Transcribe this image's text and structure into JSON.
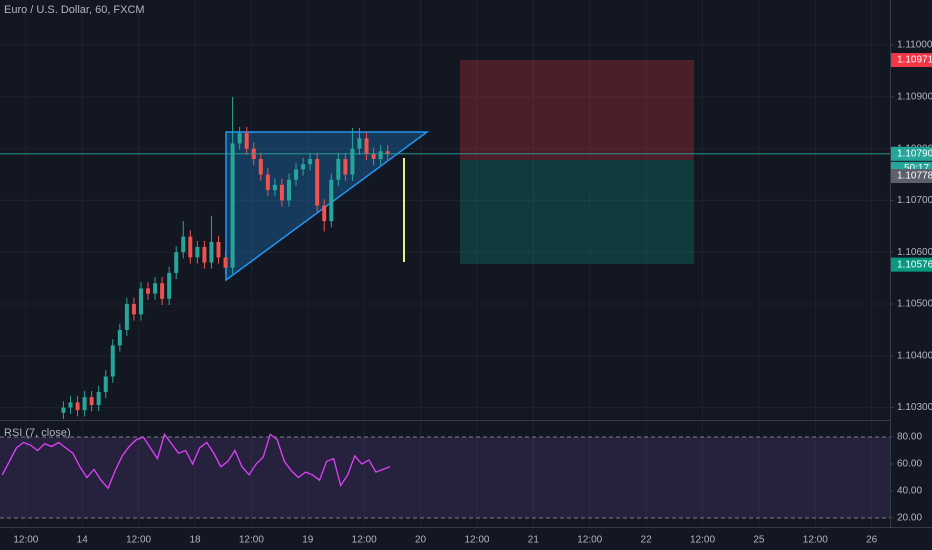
{
  "chart_data": {
    "type": "candlestick",
    "title": "Euro / U.S. Dollar, 60, FXCM",
    "x": [
      -28,
      -26.5,
      -25,
      -23.5,
      -22,
      -20.5,
      -19,
      -17.5,
      -16,
      -14.5,
      -13,
      -11.5,
      -10,
      -8.5,
      -7,
      -5.5,
      -4,
      -2.5,
      -1,
      0.5,
      2,
      3.5,
      5,
      6.5,
      8,
      9.5,
      11,
      12.5,
      14,
      15.5,
      17,
      18.5,
      20,
      21.5,
      23,
      24.5,
      26,
      27.5,
      29,
      30.5,
      32,
      33.5,
      35,
      36.5,
      38,
      39.5,
      41
    ],
    "open": [
      1.1029,
      1.103,
      1.1031,
      1.10295,
      1.1032,
      1.10305,
      1.1033,
      1.1036,
      1.1042,
      1.1045,
      1.105,
      1.1048,
      1.1053,
      1.1052,
      1.1054,
      1.1051,
      1.1056,
      1.106,
      1.1063,
      1.1059,
      1.1061,
      1.1058,
      1.1062,
      1.1059,
      1.1057,
      1.1081,
      1.1083,
      1.108,
      1.1078,
      1.1075,
      1.1072,
      1.1073,
      1.107,
      1.1074,
      1.1076,
      1.1077,
      1.1078,
      1.1069,
      1.1066,
      1.1074,
      1.1078,
      1.1075,
      1.108,
      1.1082,
      1.1079,
      1.1078,
      1.10795
    ],
    "high": [
      1.10312,
      1.10322,
      1.10322,
      1.10332,
      1.10332,
      1.10342,
      1.10372,
      1.10432,
      1.10462,
      1.10512,
      1.10512,
      1.10542,
      1.10542,
      1.10552,
      1.10552,
      1.10572,
      1.10612,
      1.1066,
      1.10642,
      1.10622,
      1.10622,
      1.1067,
      1.10632,
      1.10602,
      1.109,
      1.10842,
      1.10842,
      1.10812,
      1.10792,
      1.10762,
      1.10742,
      1.10742,
      1.10752,
      1.10772,
      1.10782,
      1.10792,
      1.10792,
      1.10702,
      1.10752,
      1.10792,
      1.10792,
      1.1084,
      1.1084,
      1.10832,
      1.10802,
      1.10807,
      1.10807
    ],
    "low": [
      1.10278,
      1.10288,
      1.10283,
      1.10283,
      1.10293,
      1.10293,
      1.10318,
      1.10348,
      1.10408,
      1.10438,
      1.10468,
      1.10468,
      1.10508,
      1.10508,
      1.10498,
      1.10498,
      1.10548,
      1.10588,
      1.10578,
      1.10578,
      1.10568,
      1.10568,
      1.10578,
      1.10558,
      1.10558,
      1.10798,
      1.10788,
      1.10768,
      1.10738,
      1.10708,
      1.10708,
      1.10688,
      1.10688,
      1.10728,
      1.10748,
      1.10758,
      1.10678,
      1.1064,
      1.10648,
      1.10728,
      1.10738,
      1.10738,
      1.10788,
      1.10778,
      1.10768,
      1.10768,
      1.10778
    ],
    "close": [
      1.103,
      1.1031,
      1.10295,
      1.1032,
      1.10305,
      1.1033,
      1.1036,
      1.1042,
      1.1045,
      1.105,
      1.1048,
      1.1053,
      1.1052,
      1.1054,
      1.1051,
      1.1056,
      1.106,
      1.1063,
      1.1059,
      1.1061,
      1.1058,
      1.1062,
      1.1059,
      1.1057,
      1.1081,
      1.1083,
      1.108,
      1.1078,
      1.1075,
      1.1072,
      1.1073,
      1.107,
      1.1074,
      1.1076,
      1.1077,
      1.1078,
      1.1069,
      1.1066,
      1.1074,
      1.1078,
      1.1075,
      1.108,
      1.1082,
      1.1079,
      1.1078,
      1.10795,
      1.1079
    ],
    "up_color": "#26a69a",
    "down_color": "#ef5350",
    "xlim": [
      -41.5,
      147.9
    ],
    "ylim": [
      1.10276,
      1.11087
    ],
    "yticks": [
      {
        "value": 1.11,
        "label": "1.11000"
      },
      {
        "value": 1.109,
        "label": "1.10900"
      },
      {
        "value": 1.108,
        "label": "1.10800"
      },
      {
        "value": 1.107,
        "label": "1.10700"
      },
      {
        "value": 1.106,
        "label": "1.10600"
      },
      {
        "value": 1.105,
        "label": "1.10500"
      },
      {
        "value": 1.104,
        "label": "1.10400"
      },
      {
        "value": 1.103,
        "label": "1.10300"
      }
    ],
    "xticks": [
      {
        "value": -36,
        "label": "12:00"
      },
      {
        "value": -24,
        "label": "14"
      },
      {
        "value": -12,
        "label": "12:00"
      },
      {
        "value": 0,
        "label": "18"
      },
      {
        "value": 12,
        "label": "12:00"
      },
      {
        "value": 24,
        "label": "19"
      },
      {
        "value": 36,
        "label": "12:00"
      },
      {
        "value": 48,
        "label": "20"
      },
      {
        "value": 60,
        "label": "12:00"
      },
      {
        "value": 72,
        "label": "21"
      },
      {
        "value": 84,
        "label": "12:00"
      },
      {
        "value": 96,
        "label": "22"
      },
      {
        "value": 108,
        "label": "12:00"
      },
      {
        "value": 120,
        "label": "25"
      },
      {
        "value": 132,
        "label": "12:00"
      },
      {
        "value": 144,
        "label": "26"
      }
    ],
    "price_labels": [
      {
        "value": 1.10971,
        "label": "1.10971",
        "color": "#f23645"
      },
      {
        "value": 1.1079,
        "label": "1.10790",
        "color": "#26a69a"
      },
      {
        "value": 1.10778,
        "label": "1.10778",
        "color": "#5d606b"
      },
      {
        "value": 1.10576,
        "label": "1.10576",
        "color": "#089981"
      }
    ],
    "countdown": "50:17",
    "rsi": {
      "title": "RSI (7, close)",
      "color": "#e040fb",
      "x": [
        -41,
        -39.5,
        -38,
        -36.5,
        -35,
        -33.5,
        -32,
        -30.5,
        -29,
        -27.5,
        -26,
        -24.5,
        -23,
        -21.5,
        -20,
        -18.5,
        -17,
        -15.5,
        -14,
        -12.5,
        -11,
        -9.5,
        -8,
        -6.5,
        -5,
        -3.5,
        -2,
        -0.5,
        1,
        2.5,
        4,
        5.5,
        7,
        8.5,
        10,
        11.5,
        13,
        14.5,
        16,
        17.5,
        19,
        20.5,
        22,
        23.5,
        25,
        26.5,
        28,
        29.5,
        31,
        32.5,
        34,
        35.5,
        37,
        38.5,
        40,
        41.5
      ],
      "values": [
        52,
        62,
        72,
        76,
        74,
        70,
        75,
        73,
        76,
        72,
        68,
        58,
        50,
        56,
        48,
        42,
        55,
        66,
        73,
        78,
        80,
        72,
        64,
        82,
        75,
        68,
        70,
        60,
        72,
        76,
        68,
        58,
        62,
        70,
        58,
        52,
        60,
        65,
        82,
        78,
        62,
        55,
        50,
        54,
        52,
        48,
        62,
        64,
        44,
        52,
        66,
        60,
        63,
        54,
        56,
        58
      ],
      "ylim": [
        13.3,
        91.9
      ],
      "yticks": [
        {
          "value": 80,
          "label": "80.00"
        },
        {
          "value": 60,
          "label": "60.00"
        },
        {
          "value": 40,
          "label": "40.00"
        },
        {
          "value": 20,
          "label": "20.00"
        }
      ],
      "bands": [
        20,
        80
      ]
    }
  }
}
